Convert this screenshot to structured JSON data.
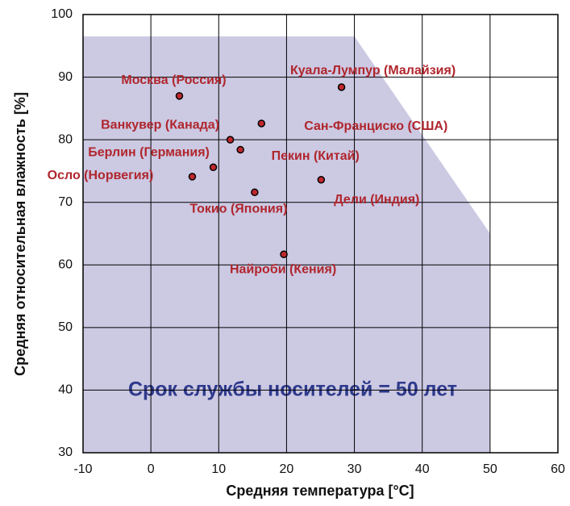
{
  "chart_data": {
    "type": "scatter",
    "xlabel": "Средняя температура [°C]",
    "ylabel": "Средняя относительная влажность [%]",
    "point_labels": [
      "Москва (Россия)",
      "Куала-Лумпур (Малайзия)",
      "Сан-Франциско (США)",
      "Ванкувер (Канада)",
      "Пекин (Китай)",
      "Берлин (Германия)",
      "Осло (Норвегия)",
      "Токио (Япония)",
      "Дели (Индия)",
      "Найроби (Кения)"
    ],
    "x": [
      4.2,
      28.1,
      16.3,
      11.7,
      13.2,
      9.2,
      6.1,
      15.3,
      25.1,
      19.6
    ],
    "values": [
      87.0,
      88.4,
      82.6,
      80.0,
      78.4,
      75.6,
      74.1,
      71.6,
      73.6,
      61.7
    ],
    "color": "#c0282e",
    "label_color": "#b0262d",
    "region": {
      "label": "Срок службы носителей = 50 лет",
      "x": [
        -10,
        30,
        50,
        50,
        -10
      ],
      "y": [
        96.5,
        96.5,
        65,
        30,
        30
      ],
      "color": "#ccc9e3",
      "label_color": "#2e3a8c"
    },
    "xlim": [
      -10,
      60
    ],
    "xticks": [
      -10,
      0,
      10,
      20,
      30,
      40,
      50,
      60
    ],
    "ylim": [
      30,
      100
    ],
    "yticks": [
      30,
      40,
      50,
      60,
      70,
      80,
      90,
      100
    ],
    "grid": true
  }
}
